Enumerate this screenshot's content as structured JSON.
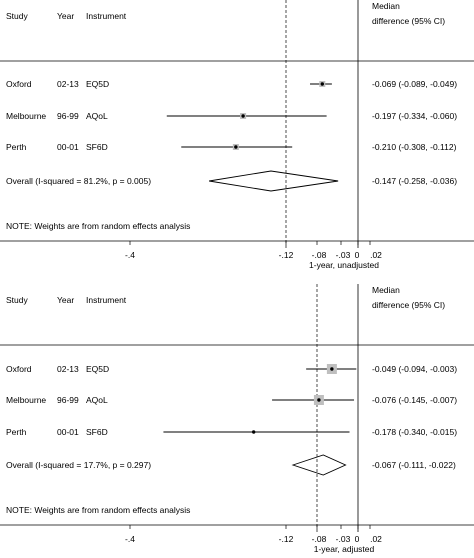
{
  "chart_data": [
    {
      "type": "forest",
      "headers": {
        "study": "Study",
        "year": "Year",
        "instrument": "Instrument",
        "effect_line1": "Median",
        "effect_line2": "difference (95% CI)"
      },
      "studies": [
        {
          "study": "Oxford",
          "year": "02-13",
          "instrument": "EQ5D",
          "estimate": -0.069,
          "lower": -0.089,
          "upper": -0.049,
          "ci_text": "-0.069 (-0.089, -0.049)",
          "weight_box": "small"
        },
        {
          "study": "Melbourne",
          "year": "96-99",
          "instrument": "AQoL",
          "estimate": -0.197,
          "lower": -0.334,
          "upper": -0.06,
          "ci_text": "-0.197 (-0.334, -0.060)",
          "weight_box": "small"
        },
        {
          "study": "Perth",
          "year": "00-01",
          "instrument": "SF6D",
          "estimate": -0.21,
          "lower": -0.308,
          "upper": -0.112,
          "ci_text": "-0.210 (-0.308, -0.112)",
          "weight_box": "small"
        }
      ],
      "overall": {
        "label": "Overall  (I-squared = 81.2%, p = 0.005)",
        "estimate": -0.147,
        "lower": -0.258,
        "upper": -0.036,
        "ci_text": "-0.147 (-0.258, -0.036)"
      },
      "note": "NOTE: Weights are from random effects analysis",
      "x_ticks": [
        {
          "value": -0.4,
          "label": "-.4"
        },
        {
          "value": -0.12,
          "label": "-.12"
        },
        {
          "value": -0.08,
          "label": "-.08"
        },
        {
          "value": -0.03,
          "label": "-.03"
        },
        {
          "value": 0,
          "label": "0"
        },
        {
          "value": 0.02,
          "label": ".02"
        }
      ],
      "xlabel": "1-year, unadjusted",
      "xlim": [
        -0.5,
        0.02
      ],
      "null_line": 0
    },
    {
      "type": "forest",
      "headers": {
        "study": "Study",
        "year": "Year",
        "instrument": "Instrument",
        "effect_line1": "Median",
        "effect_line2": "difference (95% CI)"
      },
      "studies": [
        {
          "study": "Oxford",
          "year": "02-13",
          "instrument": "EQ5D",
          "estimate": -0.049,
          "lower": -0.094,
          "upper": -0.003,
          "ci_text": "-0.049 (-0.094, -0.003)",
          "weight_box": "large"
        },
        {
          "study": "Melbourne",
          "year": "96-99",
          "instrument": "AQoL",
          "estimate": -0.076,
          "lower": -0.145,
          "upper": -0.007,
          "ci_text": "-0.076 (-0.145, -0.007)",
          "weight_box": "large"
        },
        {
          "study": "Perth",
          "year": "00-01",
          "instrument": "SF6D",
          "estimate": -0.178,
          "lower": -0.34,
          "upper": -0.015,
          "ci_text": "-0.178 (-0.340, -0.015)",
          "weight_box": "none"
        }
      ],
      "overall": {
        "label": "Overall  (I-squared = 17.7%, p = 0.297)",
        "estimate": -0.067,
        "lower": -0.111,
        "upper": -0.022,
        "ci_text": "-0.067 (-0.111, -0.022)"
      },
      "note": "NOTE: Weights are from random effects analysis",
      "x_ticks": [
        {
          "value": -0.4,
          "label": "-.4"
        },
        {
          "value": -0.12,
          "label": "-.12"
        },
        {
          "value": -0.08,
          "label": "-.08"
        },
        {
          "value": -0.03,
          "label": "-.03"
        },
        {
          "value": 0,
          "label": "0"
        },
        {
          "value": 0.02,
          "label": ".02"
        }
      ],
      "xlabel": "1-year, adjusted",
      "xlim": [
        -0.5,
        0.02
      ],
      "null_line": 0
    }
  ],
  "colors": {
    "line": "#000000",
    "weight_box": "#bfbfbf",
    "axis": "#000000"
  }
}
